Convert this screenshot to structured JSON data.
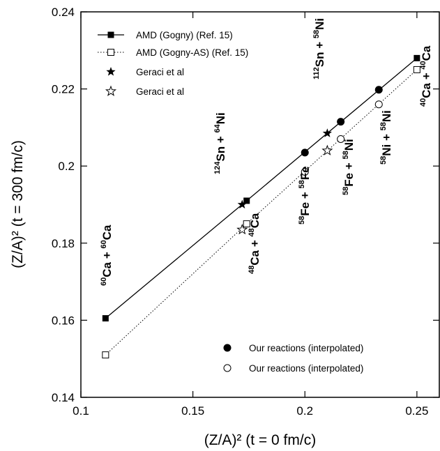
{
  "chart_data": {
    "type": "scatter",
    "xlabel": "(Z/A)² (t = 0 fm/c)",
    "ylabel": "(Z/A)² (t = 300 fm/c)",
    "xlim": [
      0.1,
      0.26
    ],
    "ylim": [
      0.14,
      0.24
    ],
    "x_ticks": [
      0.1,
      0.15,
      0.2,
      0.25
    ],
    "x_tick_labels": [
      "0.1",
      "0.15",
      "0.2",
      "0.25"
    ],
    "y_ticks": [
      0.14,
      0.16,
      0.18,
      0.2,
      0.22,
      0.24
    ],
    "y_tick_labels": [
      "0.14",
      "0.16",
      "0.18",
      "0.2",
      "0.22",
      "0.24"
    ],
    "grid": false,
    "legend_top": "top-left",
    "legend_bottom": "bottom-right",
    "series": [
      {
        "name": "AMD (Gogny) (Ref. 15)",
        "marker": "filled-square",
        "line": "solid",
        "x": [
          0.111,
          0.174,
          0.25
        ],
        "y": [
          0.1605,
          0.191,
          0.228
        ]
      },
      {
        "name": "AMD (Gogny-AS) (Ref. 15)",
        "marker": "open-square",
        "line": "dotted",
        "x": [
          0.111,
          0.174,
          0.25
        ],
        "y": [
          0.151,
          0.185,
          0.225
        ]
      },
      {
        "name": "Geraci et al",
        "marker": "filled-star",
        "line": "none",
        "x": [
          0.172,
          0.21
        ],
        "y": [
          0.19,
          0.2085
        ]
      },
      {
        "name": "Geraci et al",
        "marker": "open-star",
        "line": "none",
        "x": [
          0.172,
          0.21
        ],
        "y": [
          0.1835,
          0.204
        ]
      },
      {
        "name": "Our reactions (interpolated)",
        "marker": "filled-circle",
        "line": "none",
        "x": [
          0.2,
          0.216,
          0.233
        ],
        "y": [
          0.2035,
          0.2115,
          0.2198
        ]
      },
      {
        "name": "Our reactions (interpolated)",
        "marker": "open-circle",
        "line": "none",
        "x": [
          0.2,
          0.216,
          0.233
        ],
        "y": [
          0.1985,
          0.207,
          0.216
        ]
      }
    ],
    "annotations": [
      {
        "id": "ca60",
        "parts": [
          {
            "sup": "60"
          },
          {
            "t": "Ca + "
          },
          {
            "sup": "60"
          },
          {
            "t": "Ca"
          }
        ]
      },
      {
        "id": "ca48",
        "parts": [
          {
            "sup": "48"
          },
          {
            "t": "Ca + "
          },
          {
            "sup": "48"
          },
          {
            "t": "Ca"
          }
        ]
      },
      {
        "id": "sn124",
        "parts": [
          {
            "sup": "124"
          },
          {
            "t": "Sn + "
          },
          {
            "sup": "64"
          },
          {
            "t": "Ni"
          }
        ]
      },
      {
        "id": "fe58",
        "parts": [
          {
            "sup": "58"
          },
          {
            "t": "Fe + "
          },
          {
            "sup": "58"
          },
          {
            "t": "Fe"
          }
        ]
      },
      {
        "id": "sn112",
        "parts": [
          {
            "sup": "112"
          },
          {
            "t": "Sn + "
          },
          {
            "sup": "58"
          },
          {
            "t": "Ni"
          }
        ]
      },
      {
        "id": "fe58ni",
        "parts": [
          {
            "sup": "58"
          },
          {
            "t": "Fe + "
          },
          {
            "sup": "58"
          },
          {
            "t": "Ni"
          }
        ]
      },
      {
        "id": "ni58",
        "parts": [
          {
            "sup": "58"
          },
          {
            "t": "Ni + "
          },
          {
            "sup": "58"
          },
          {
            "t": "Ni"
          }
        ]
      },
      {
        "id": "ca40",
        "parts": [
          {
            "sup": "40"
          },
          {
            "t": "Ca + "
          },
          {
            "sup": "40"
          },
          {
            "t": "Ca"
          }
        ]
      }
    ]
  }
}
